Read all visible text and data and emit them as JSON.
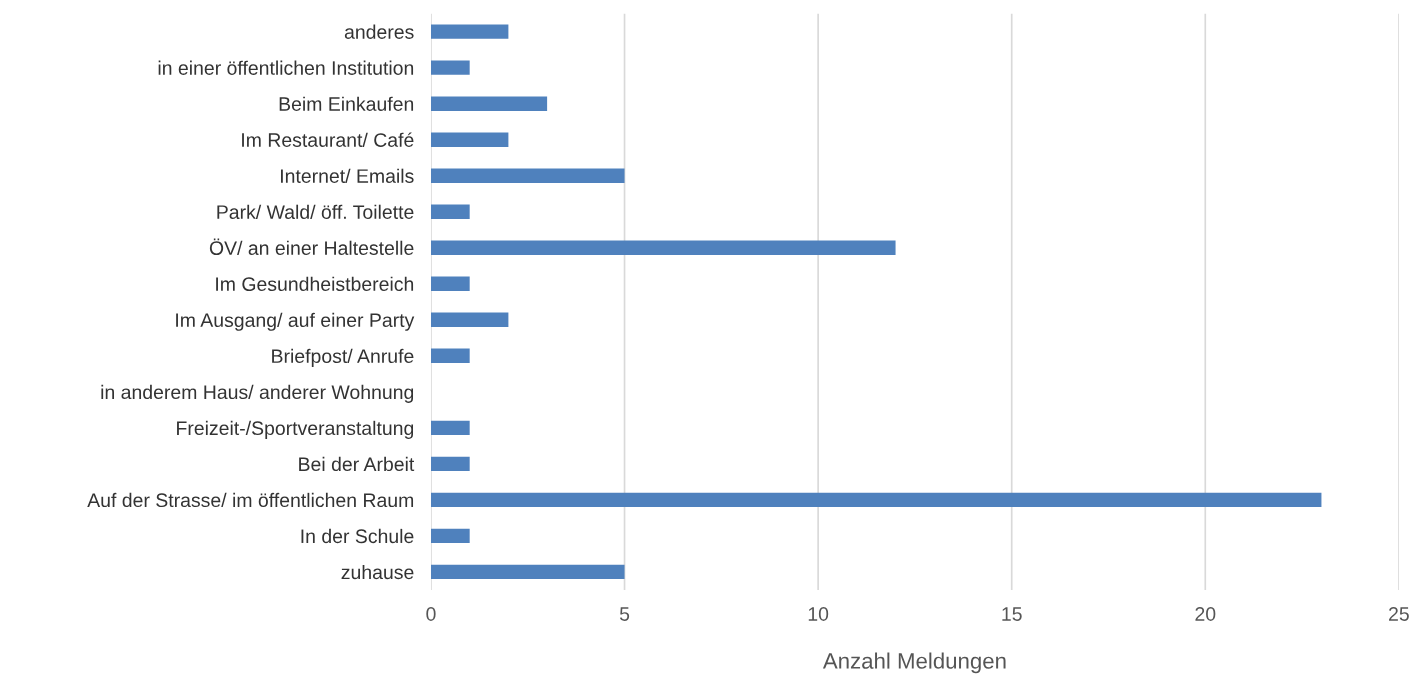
{
  "chart_data": {
    "type": "bar",
    "orientation": "horizontal",
    "categories": [
      "anderes",
      "in einer öffentlichen Institution",
      "Beim Einkaufen",
      "Im Restaurant/ Café",
      "Internet/ Emails",
      "Park/ Wald/ öff. Toilette",
      "ÖV/ an einer Haltestelle",
      "Im Gesundheistbereich",
      "Im Ausgang/ auf einer Party",
      "Briefpost/ Anrufe",
      "in anderem Haus/ anderer Wohnung",
      "Freizeit-/Sportveranstaltung",
      "Bei der Arbeit",
      "Auf der Strasse/ im öffentlichen Raum",
      "In der Schule",
      "zuhause"
    ],
    "values": [
      2,
      1,
      3,
      2,
      5,
      1,
      12,
      1,
      2,
      1,
      0,
      1,
      1,
      23,
      1,
      5
    ],
    "color": "#4f81bd",
    "xlabel": "Anzahl Meldungen",
    "xlim": [
      0,
      25
    ],
    "xticks": [
      0,
      5,
      10,
      15,
      20,
      25
    ],
    "grid": "x",
    "legend": false
  }
}
